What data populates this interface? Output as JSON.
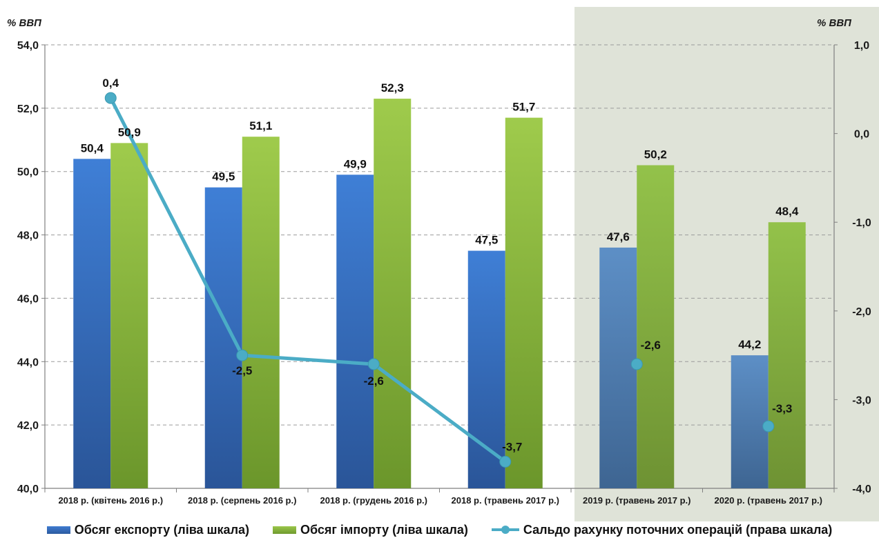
{
  "chart_data": {
    "type": "bar",
    "left_axis_unit": "% ВВП",
    "right_axis_unit": "% ВВП",
    "categories": [
      "2018 р. (квітень 2016 р.)",
      "2018 р. (серпень 2016 р.)",
      "2018 р. (грудень 2016 р.)",
      "2018 р. (травень 2017 р.)",
      "2019 р. (травень 2017 р.)",
      "2020 р. (травень 2017 р.)"
    ],
    "y_left": {
      "min": 40.0,
      "max": 54.0,
      "ticks": [
        "40,0",
        "42,0",
        "44,0",
        "46,0",
        "48,0",
        "50,0",
        "52,0",
        "54,0"
      ]
    },
    "y_right": {
      "min": -4.0,
      "max": 1.0,
      "ticks": [
        "-4,0",
        "-3,0",
        "-2,0",
        "-1,0",
        "0,0",
        "1,0"
      ]
    },
    "grid": true,
    "legend_position": "bottom",
    "forecast_shaded_categories": [
      4,
      5
    ],
    "series": [
      {
        "name": "Обсяг експорту (ліва шкала)",
        "kind": "bar",
        "axis": "left",
        "values": [
          50.4,
          49.5,
          49.9,
          47.5,
          47.6,
          44.2
        ],
        "labels": [
          "50,4",
          "49,5",
          "49,9",
          "47,5",
          "47,6",
          "44,2"
        ],
        "color": "#3a74c8"
      },
      {
        "name": "Обсяг імпорту (ліва шкала)",
        "kind": "bar",
        "axis": "left",
        "values": [
          50.9,
          51.1,
          52.3,
          51.7,
          50.2,
          48.4
        ],
        "labels": [
          "50,9",
          "51,1",
          "52,3",
          "51,7",
          "50,2",
          "48,4"
        ],
        "color": "#8cb840"
      },
      {
        "name": "Сальдо рахунку поточних операцій (права шкала)",
        "kind": "line",
        "axis": "right",
        "values": [
          0.4,
          -2.5,
          -2.6,
          -3.7,
          -2.6,
          -3.3
        ],
        "labels": [
          "0,4",
          "-2,5",
          "-2,6",
          "-3,7",
          "-2,6",
          "-3,3"
        ],
        "connected_points": [
          0,
          1,
          2,
          3
        ],
        "color": "#4bacc6"
      }
    ]
  }
}
